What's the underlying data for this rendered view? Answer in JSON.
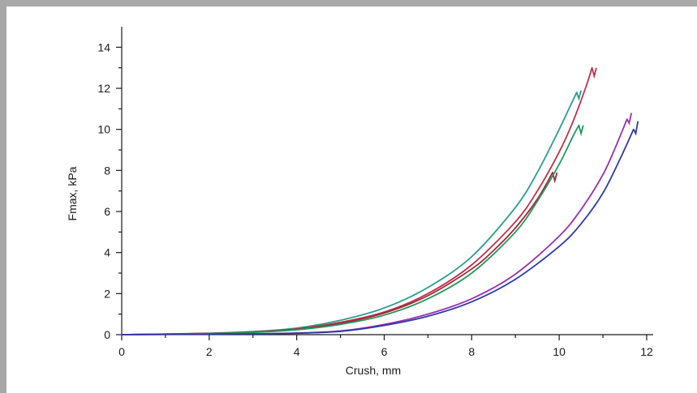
{
  "chart_data": {
    "type": "line",
    "title": "",
    "xlabel": "Crush, mm",
    "ylabel": "Fmax, kPa",
    "xlim": [
      0,
      12
    ],
    "ylim": [
      0,
      15
    ],
    "x_ticks": [
      0,
      2,
      4,
      6,
      8,
      10,
      12
    ],
    "y_ticks": [
      0,
      2,
      4,
      6,
      8,
      10,
      12,
      14
    ],
    "grid": false,
    "legend": "none",
    "series": [
      {
        "color": "#2a9d92",
        "x": [
          0,
          2,
          3,
          4,
          5,
          6,
          7,
          8,
          9,
          9.5,
          10,
          10.2,
          10.4,
          10.45,
          10.5
        ],
        "y": [
          0,
          0.07,
          0.15,
          0.32,
          0.7,
          1.3,
          2.3,
          3.8,
          6.2,
          7.9,
          10.0,
          10.9,
          11.8,
          11.5,
          11.9
        ]
      },
      {
        "color": "#c0304a",
        "x": [
          0,
          2,
          3,
          4,
          5,
          6,
          7,
          8,
          9,
          9.5,
          10,
          10.3,
          10.6,
          10.75,
          10.8,
          10.85
        ],
        "y": [
          0,
          0.06,
          0.13,
          0.28,
          0.6,
          1.1,
          2.0,
          3.4,
          5.5,
          7.0,
          8.9,
          10.3,
          12.0,
          13.0,
          12.6,
          13.0
        ]
      },
      {
        "color": "#a3283c",
        "x": [
          0,
          2,
          3,
          4,
          5,
          6,
          7,
          8,
          8.5,
          9,
          9.5,
          9.85,
          9.9,
          9.95
        ],
        "y": [
          0,
          0.06,
          0.12,
          0.26,
          0.55,
          1.05,
          1.9,
          3.2,
          4.1,
          5.2,
          6.6,
          7.9,
          7.5,
          7.9
        ]
      },
      {
        "color": "#1f9a5a",
        "x": [
          0,
          2,
          3,
          4,
          5,
          6,
          7,
          8,
          9,
          9.5,
          10,
          10.3,
          10.45,
          10.5,
          10.55
        ],
        "y": [
          0,
          0.05,
          0.11,
          0.24,
          0.5,
          0.95,
          1.75,
          3.0,
          5.0,
          6.5,
          8.3,
          9.6,
          10.2,
          9.8,
          10.2
        ]
      },
      {
        "color": "#9a2fb0",
        "x": [
          0,
          3,
          4,
          5,
          6,
          7,
          8,
          9,
          10,
          10.5,
          11,
          11.3,
          11.55,
          11.6,
          11.65
        ],
        "y": [
          0,
          0.04,
          0.08,
          0.18,
          0.5,
          1.0,
          1.75,
          2.95,
          4.8,
          6.1,
          7.8,
          9.2,
          10.5,
          10.3,
          10.8
        ]
      },
      {
        "color": "#2e3aa6",
        "x": [
          0,
          3,
          4,
          5,
          6,
          7,
          8,
          9,
          10,
          10.5,
          11,
          11.4,
          11.7,
          11.75,
          11.8
        ],
        "y": [
          0,
          0.04,
          0.07,
          0.16,
          0.45,
          0.9,
          1.6,
          2.7,
          4.3,
          5.4,
          6.9,
          8.6,
          10.0,
          9.8,
          10.4
        ]
      }
    ]
  }
}
